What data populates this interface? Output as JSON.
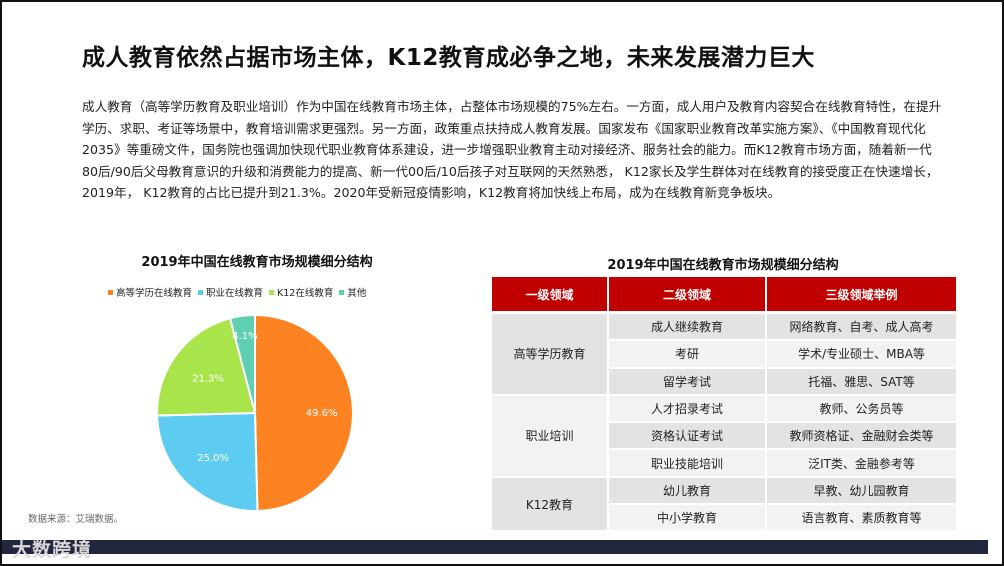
{
  "title": "成人教育依然占据市场主体，K12教育成必争之地，未来发展潜力巨大",
  "paragraph": "成人教育（高等学历教育及职业培训）作为中国在线教育市场主体，占整体市场规模的75%左右。一方面，成人用户及教育内容契合在线教育特性，在提升学历、求职、考证等场景中，教育培训需求更强烈。另一方面，政策重点扶持成人教育发展。国家发布《国家职业教育改革实施方案》、《中国教育现代化2035》等重磅文件，国务院也强调加快现代职业教育体系建设，进一步增强职业教育主动对接经济、服务社会的能力。而K12教育市场方面，随着新一代80后/90后父母教育意识的升级和消费能力的提高、新一代00后/10后孩子对互联网的天然熟悉， K12家长及学生群体对在线教育的接受度正在快速增长， 2019年， K12教育的占比已提升到21.3%。2020年受新冠疫情影响，K12教育将加快线上布局，成为在线教育新竞争板块。",
  "chart_data": {
    "type": "pie",
    "title": "2019年中国在线教育市场规模细分结构",
    "legend_position": "top",
    "categories": [
      "高等学历在线教育",
      "职业在线教育",
      "K12在线教育",
      "其他"
    ],
    "values": [
      49.6,
      25.0,
      21.3,
      4.1
    ],
    "labels": [
      "49.6%",
      "25.0%",
      "21.3%",
      "4.1%"
    ],
    "colors": [
      "#fd8221",
      "#5ecbf1",
      "#a9e44b",
      "#5ecfb0"
    ]
  },
  "source": "数据来源：艾瑞数据。",
  "table": {
    "title": "2019年中国在线教育市场规模细分结构",
    "headers": [
      "一级领域",
      "二级领域",
      "三级领域举例"
    ],
    "groups": [
      {
        "name": "高等学历教育",
        "rows": [
          [
            "成人继续教育",
            "网络教育、自考、成人高考"
          ],
          [
            "考研",
            "学术/专业硕士、MBA等"
          ],
          [
            "留学考试",
            "托福、雅思、SAT等"
          ]
        ]
      },
      {
        "name": "职业培训",
        "rows": [
          [
            "人才招录考试",
            "教师、公务员等"
          ],
          [
            "资格认证考试",
            "教师资格证、金融财会类等"
          ],
          [
            "职业技能培训",
            "泛IT类、金融参考等"
          ]
        ]
      },
      {
        "name": "K12教育",
        "rows": [
          [
            "幼儿教育",
            "早教、幼儿园教育"
          ],
          [
            "中小学教育",
            "语言教育、素质教育等"
          ]
        ]
      }
    ]
  },
  "footer": {
    "logo": "大数跨境"
  }
}
